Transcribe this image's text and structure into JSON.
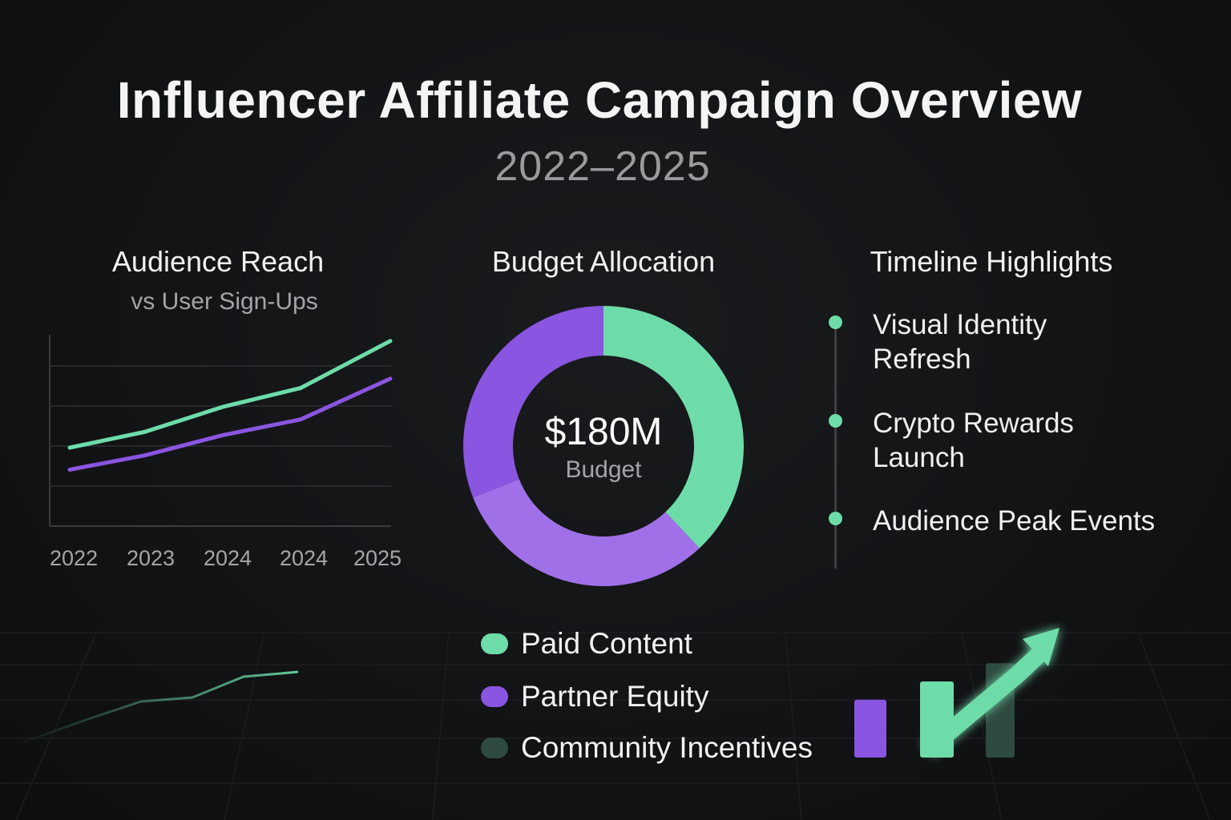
{
  "header": {
    "title": "Influencer Affiliate Campaign Overview",
    "subtitle": "2022–2025"
  },
  "colors": {
    "green": "#6edca9",
    "purple": "#8a55e0",
    "light_purple": "#a070e8",
    "dark_green": "#2f4a40",
    "background": "#121315"
  },
  "chart_data": [
    {
      "type": "line",
      "title": "Audience Reach",
      "subtitle": "vs User Sign-Ups",
      "categories": [
        "2022",
        "2023",
        "2024",
        "2024",
        "2025"
      ],
      "series": [
        {
          "color": "#6edca9",
          "values": [
            28,
            38,
            54,
            66,
            96
          ]
        },
        {
          "color": "#8a55e0",
          "values": [
            14,
            23,
            36,
            46,
            72
          ]
        }
      ],
      "ylim": [
        -22,
        100
      ],
      "grid": true
    },
    {
      "type": "pie",
      "title": "Budget Allocation",
      "center_value": "$180M",
      "center_label": "Budget",
      "slices": [
        {
          "label": "Paid Content",
          "value": 38,
          "color": "#6edca9"
        },
        {
          "label": "Partner Equity",
          "value": 31,
          "color": "#a070e8"
        },
        {
          "label": "Community Incentives",
          "value": 31,
          "color": "#8a55e0"
        }
      ]
    }
  ],
  "legend": [
    {
      "label": "Paid Content",
      "color": "#6edca9"
    },
    {
      "label": "Partner Equity",
      "color": "#8a55e0"
    },
    {
      "label": "Community Incentives",
      "color": "#2f4a40"
    }
  ],
  "timeline": {
    "title": "Timeline Highlights",
    "items": [
      {
        "line1": "Visual Identity",
        "line2": "Refresh"
      },
      {
        "line1": "Crypto Rewards",
        "line2": "Launch"
      },
      {
        "line1": "Audience Peak Events",
        "line2": ""
      }
    ]
  },
  "decor": {
    "growth_bars": [
      {
        "value": 0.38,
        "color": "#8a55e0"
      },
      {
        "value": 0.5,
        "color": "#6edca9"
      },
      {
        "value": 0.62,
        "color": "#2f4a40"
      }
    ],
    "arrow_icon": "up-right-arrow-icon"
  }
}
